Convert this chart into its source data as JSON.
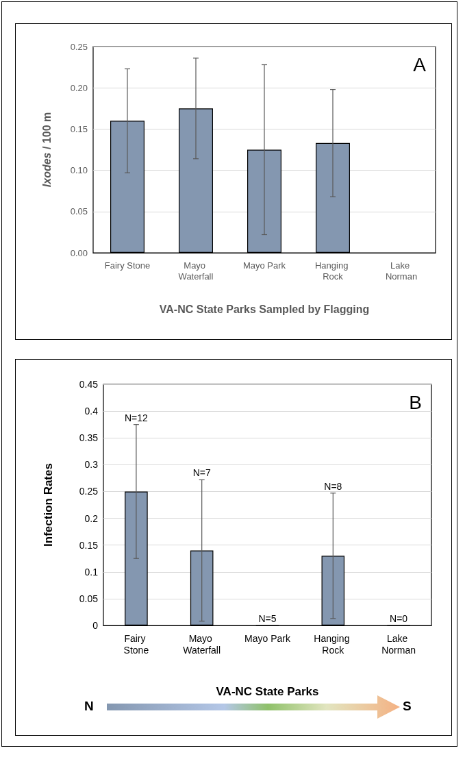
{
  "chart_data": [
    {
      "type": "bar",
      "xlabel": "VA-NC State Parks Sampled by Flagging",
      "ylabel": "Ixodes / 100 m",
      "categories": [
        "Fairy Stone",
        "Mayo Waterfall",
        "Mayo Park",
        "Hanging Rock",
        "Lake Norman"
      ],
      "values": [
        0.16,
        0.175,
        0.125,
        0.133,
        null
      ],
      "color": "#8497b0",
      "errors": [
        0.063,
        0.061,
        0.103,
        0.065,
        null
      ],
      "ylim": [
        0,
        0.25
      ],
      "yticks": [
        {
          "value": 0,
          "label": "0.00"
        },
        {
          "value": 0.05,
          "label": "0.05"
        },
        {
          "value": 0.1,
          "label": "0.10"
        },
        {
          "value": 0.15,
          "label": "0.15"
        },
        {
          "value": 0.2,
          "label": "0.20"
        },
        {
          "value": 0.25,
          "label": "0.25"
        }
      ],
      "grid": "y",
      "annotations": [
        "A"
      ]
    },
    {
      "type": "bar",
      "xlabel": "VA-NC State Parks",
      "ylabel": "Infection Rates",
      "categories": [
        "Fairy Stone",
        "Mayo Waterfall",
        "Mayo Park",
        "Hanging Rock",
        "Lake Norman"
      ],
      "values": [
        0.25,
        0.14,
        0,
        0.13,
        0
      ],
      "color": "#8497b0",
      "errors": [
        0.125,
        0.132,
        null,
        0.117,
        null
      ],
      "ylim": [
        0,
        0.45
      ],
      "yticks": [
        0,
        0.05,
        0.1,
        0.15,
        0.2,
        0.25,
        0.3,
        0.35,
        0.4,
        0.45
      ],
      "grid": "y",
      "annotations": [
        "B",
        "N",
        "S",
        {
          "text": "N=12",
          "x": "Fairy Stone",
          "y": 0.375
        },
        {
          "text": "N=7",
          "x": "Mayo Waterfall",
          "y": 0.272
        },
        {
          "text": "N=5",
          "x": "Mayo Park",
          "y": 0
        },
        {
          "text": "N=8",
          "x": "Hanging Rock",
          "y": 0.247
        },
        {
          "text": "N=0",
          "x": "Lake Norman",
          "y": 0
        }
      ]
    }
  ]
}
